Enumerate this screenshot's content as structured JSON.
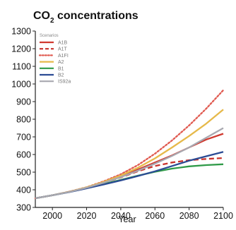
{
  "chart_data": {
    "type": "line",
    "title_main": "CO",
    "title_sub": "2",
    "title_rest": " concentrations",
    "xlabel": "Year",
    "ylabel": "",
    "xlim": [
      1990,
      2100
    ],
    "ylim": [
      300,
      1300
    ],
    "x_ticks": [
      2000,
      2020,
      2040,
      2060,
      2080,
      2100
    ],
    "y_ticks": [
      300,
      400,
      500,
      600,
      700,
      800,
      900,
      1000,
      1100,
      1200,
      1300
    ],
    "grid": false,
    "legend_title": "Scenarios",
    "legend_position": "top-left",
    "x": [
      1990,
      2000,
      2010,
      2020,
      2030,
      2040,
      2050,
      2060,
      2070,
      2080,
      2090,
      2100
    ],
    "series": [
      {
        "name": "A1B",
        "color": "#d03a30",
        "dash": "solid",
        "values": [
          352,
          369,
          389,
          412,
          440,
          475,
          515,
          555,
          595,
          640,
          685,
          718
        ]
      },
      {
        "name": "A1T",
        "color": "#c8322c",
        "dash": "dashed",
        "values": [
          352,
          369,
          389,
          412,
          440,
          470,
          505,
          535,
          555,
          568,
          575,
          580
        ]
      },
      {
        "name": "A1FI",
        "color": "#e05a50",
        "dash": "dotted",
        "values": [
          352,
          369,
          390,
          415,
          448,
          488,
          540,
          605,
          680,
          765,
          860,
          965
        ]
      },
      {
        "name": "A2",
        "color": "#e6b94a",
        "dash": "solid",
        "values": [
          352,
          369,
          389,
          414,
          445,
          481,
          525,
          578,
          640,
          705,
          775,
          855
        ]
      },
      {
        "name": "B1",
        "color": "#2f9a48",
        "dash": "solid",
        "values": [
          352,
          369,
          388,
          410,
          433,
          456,
          480,
          502,
          520,
          533,
          540,
          545
        ]
      },
      {
        "name": "B2",
        "color": "#2b4b94",
        "dash": "solid",
        "values": [
          352,
          369,
          387,
          408,
          430,
          453,
          478,
          505,
          535,
          565,
          590,
          615
        ]
      },
      {
        "name": "IS92a",
        "color": "#a8a8b0",
        "dash": "solid",
        "values": [
          352,
          369,
          388,
          412,
          440,
          472,
          508,
          548,
          592,
          640,
          695,
          750
        ]
      }
    ]
  }
}
